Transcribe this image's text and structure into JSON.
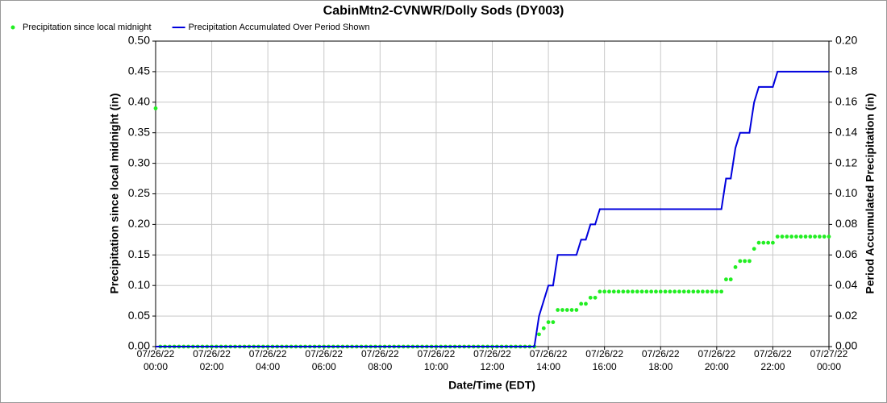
{
  "chart_data": {
    "type": "line",
    "title": "CabinMtn2-CVNWR/Dolly Sods (DY003)",
    "xlabel": "Date/Time (EDT)",
    "ylabel": "Precipitation since local midnight (in)",
    "y2label": "Period Accumulated Precipitation (in)",
    "xlim": [
      "07/26/22 00:00",
      "07/27/22 00:00"
    ],
    "xticks": [
      "07/26/22 00:00",
      "07/26/22 02:00",
      "07/26/22 04:00",
      "07/26/22 06:00",
      "07/26/22 08:00",
      "07/26/22 10:00",
      "07/26/22 12:00",
      "07/26/22 14:00",
      "07/26/22 16:00",
      "07/26/22 18:00",
      "07/26/22 20:00",
      "07/26/22 22:00",
      "07/27/22 00:00"
    ],
    "ylim": [
      0,
      0.5
    ],
    "yticks": [
      {
        "value": 0,
        "label": "0.00"
      },
      {
        "value": 0.05,
        "label": "0.05"
      },
      {
        "value": 0.1,
        "label": "0.10"
      },
      {
        "value": 0.15,
        "label": "0.15"
      },
      {
        "value": 0.2,
        "label": "0.20"
      },
      {
        "value": 0.25,
        "label": "0.25"
      },
      {
        "value": 0.3,
        "label": "0.30"
      },
      {
        "value": 0.35,
        "label": "0.35"
      },
      {
        "value": 0.4,
        "label": "0.40"
      },
      {
        "value": 0.45,
        "label": "0.45"
      },
      {
        "value": 0.5,
        "label": "0.50"
      }
    ],
    "y2lim": [
      0,
      0.2
    ],
    "y2ticks": [
      {
        "value": 0,
        "label": "0.00"
      },
      {
        "value": 0.02,
        "label": "0.02"
      },
      {
        "value": 0.04,
        "label": "0.04"
      },
      {
        "value": 0.06,
        "label": "0.06"
      },
      {
        "value": 0.08,
        "label": "0.08"
      },
      {
        "value": 0.1,
        "label": "0.10"
      },
      {
        "value": 0.12,
        "label": "0.12"
      },
      {
        "value": 0.14,
        "label": "0.14"
      },
      {
        "value": 0.16,
        "label": "0.16"
      },
      {
        "value": 0.18,
        "label": "0.18"
      },
      {
        "value": 0.2,
        "label": "0.20"
      }
    ],
    "grid": true,
    "x": [
      "07/26/22 00:00",
      "07/26/22 00:10",
      "07/26/22 00:20",
      "07/26/22 00:30",
      "07/26/22 00:40",
      "07/26/22 00:50",
      "07/26/22 01:00",
      "07/26/22 01:10",
      "07/26/22 01:20",
      "07/26/22 01:30",
      "07/26/22 01:40",
      "07/26/22 01:50",
      "07/26/22 02:00",
      "07/26/22 02:10",
      "07/26/22 02:20",
      "07/26/22 02:30",
      "07/26/22 02:40",
      "07/26/22 02:50",
      "07/26/22 03:00",
      "07/26/22 03:10",
      "07/26/22 03:20",
      "07/26/22 03:30",
      "07/26/22 03:40",
      "07/26/22 03:50",
      "07/26/22 04:00",
      "07/26/22 04:10",
      "07/26/22 04:20",
      "07/26/22 04:30",
      "07/26/22 04:40",
      "07/26/22 04:50",
      "07/26/22 05:00",
      "07/26/22 05:10",
      "07/26/22 05:20",
      "07/26/22 05:30",
      "07/26/22 05:40",
      "07/26/22 05:50",
      "07/26/22 06:00",
      "07/26/22 06:10",
      "07/26/22 06:20",
      "07/26/22 06:30",
      "07/26/22 06:40",
      "07/26/22 06:50",
      "07/26/22 07:00",
      "07/26/22 07:10",
      "07/26/22 07:20",
      "07/26/22 07:30",
      "07/26/22 07:40",
      "07/26/22 07:50",
      "07/26/22 08:00",
      "07/26/22 08:10",
      "07/26/22 08:20",
      "07/26/22 08:30",
      "07/26/22 08:40",
      "07/26/22 08:50",
      "07/26/22 09:00",
      "07/26/22 09:10",
      "07/26/22 09:20",
      "07/26/22 09:30",
      "07/26/22 09:40",
      "07/26/22 09:50",
      "07/26/22 10:00",
      "07/26/22 10:10",
      "07/26/22 10:20",
      "07/26/22 10:30",
      "07/26/22 10:40",
      "07/26/22 10:50",
      "07/26/22 11:00",
      "07/26/22 11:10",
      "07/26/22 11:20",
      "07/26/22 11:30",
      "07/26/22 11:40",
      "07/26/22 11:50",
      "07/26/22 12:00",
      "07/26/22 12:10",
      "07/26/22 12:20",
      "07/26/22 12:30",
      "07/26/22 12:40",
      "07/26/22 12:50",
      "07/26/22 13:00",
      "07/26/22 13:10",
      "07/26/22 13:20",
      "07/26/22 13:30",
      "07/26/22 13:40",
      "07/26/22 13:50",
      "07/26/22 14:00",
      "07/26/22 14:10",
      "07/26/22 14:20",
      "07/26/22 14:30",
      "07/26/22 14:40",
      "07/26/22 14:50",
      "07/26/22 15:00",
      "07/26/22 15:10",
      "07/26/22 15:20",
      "07/26/22 15:30",
      "07/26/22 15:40",
      "07/26/22 15:50",
      "07/26/22 16:00",
      "07/26/22 16:10",
      "07/26/22 16:20",
      "07/26/22 16:30",
      "07/26/22 16:40",
      "07/26/22 16:50",
      "07/26/22 17:00",
      "07/26/22 17:10",
      "07/26/22 17:20",
      "07/26/22 17:30",
      "07/26/22 17:40",
      "07/26/22 17:50",
      "07/26/22 18:00",
      "07/26/22 18:10",
      "07/26/22 18:20",
      "07/26/22 18:30",
      "07/26/22 18:40",
      "07/26/22 18:50",
      "07/26/22 19:00",
      "07/26/22 19:10",
      "07/26/22 19:20",
      "07/26/22 19:30",
      "07/26/22 19:40",
      "07/26/22 19:50",
      "07/26/22 20:00",
      "07/26/22 20:10",
      "07/26/22 20:20",
      "07/26/22 20:30",
      "07/26/22 20:40",
      "07/26/22 20:50",
      "07/26/22 21:00",
      "07/26/22 21:10",
      "07/26/22 21:20",
      "07/26/22 21:30",
      "07/26/22 21:40",
      "07/26/22 21:50",
      "07/26/22 22:00",
      "07/26/22 22:10",
      "07/26/22 22:20",
      "07/26/22 22:30",
      "07/26/22 22:40",
      "07/26/22 22:50",
      "07/26/22 23:00",
      "07/26/22 23:10",
      "07/26/22 23:20",
      "07/26/22 23:30",
      "07/26/22 23:40",
      "07/26/22 23:50",
      "07/27/22 00:00"
    ],
    "series": [
      {
        "name": "Precipitation since local midnight",
        "type": "scatter",
        "color": "#22ee22",
        "values": [
          0.39,
          0,
          0,
          0,
          0,
          0,
          0,
          0,
          0,
          0,
          0,
          0,
          0,
          0,
          0,
          0,
          0,
          0,
          0,
          0,
          0,
          0,
          0,
          0,
          0,
          0,
          0,
          0,
          0,
          0,
          0,
          0,
          0,
          0,
          0,
          0,
          0,
          0,
          0,
          0,
          0,
          0,
          0,
          0,
          0,
          0,
          0,
          0,
          0,
          0,
          0,
          0,
          0,
          0,
          0,
          0,
          0,
          0,
          0,
          0,
          0,
          0,
          0,
          0,
          0,
          0,
          0,
          0,
          0,
          0,
          0,
          0,
          0,
          0,
          0,
          0,
          0,
          0,
          0,
          0,
          0,
          0,
          0.02,
          0.03,
          0.04,
          0.04,
          0.06,
          0.06,
          0.06,
          0.06,
          0.06,
          0.07,
          0.07,
          0.08,
          0.08,
          0.09,
          0.09,
          0.09,
          0.09,
          0.09,
          0.09,
          0.09,
          0.09,
          0.09,
          0.09,
          0.09,
          0.09,
          0.09,
          0.09,
          0.09,
          0.09,
          0.09,
          0.09,
          0.09,
          0.09,
          0.09,
          0.09,
          0.09,
          0.09,
          0.09,
          0.09,
          0.09,
          0.11,
          0.11,
          0.13,
          0.14,
          0.14,
          0.14,
          0.16,
          0.17,
          0.17,
          0.17,
          0.17,
          0.18,
          0.18,
          0.18,
          0.18,
          0.18,
          0.18,
          0.18,
          0.18,
          0.18,
          0.18,
          0.18,
          0.18
        ]
      },
      {
        "name": "Precipitation Accumulated Over Period Shown",
        "type": "line",
        "axis": "y2",
        "color": "#0000dd",
        "values": [
          0,
          0,
          0,
          0,
          0,
          0,
          0,
          0,
          0,
          0,
          0,
          0,
          0,
          0,
          0,
          0,
          0,
          0,
          0,
          0,
          0,
          0,
          0,
          0,
          0,
          0,
          0,
          0,
          0,
          0,
          0,
          0,
          0,
          0,
          0,
          0,
          0,
          0,
          0,
          0,
          0,
          0,
          0,
          0,
          0,
          0,
          0,
          0,
          0,
          0,
          0,
          0,
          0,
          0,
          0,
          0,
          0,
          0,
          0,
          0,
          0,
          0,
          0,
          0,
          0,
          0,
          0,
          0,
          0,
          0,
          0,
          0,
          0,
          0,
          0,
          0,
          0,
          0,
          0,
          0,
          0,
          0,
          0.02,
          0.03,
          0.04,
          0.04,
          0.06,
          0.06,
          0.06,
          0.06,
          0.06,
          0.07,
          0.07,
          0.08,
          0.08,
          0.09,
          0.09,
          0.09,
          0.09,
          0.09,
          0.09,
          0.09,
          0.09,
          0.09,
          0.09,
          0.09,
          0.09,
          0.09,
          0.09,
          0.09,
          0.09,
          0.09,
          0.09,
          0.09,
          0.09,
          0.09,
          0.09,
          0.09,
          0.09,
          0.09,
          0.09,
          0.09,
          0.11,
          0.11,
          0.13,
          0.14,
          0.14,
          0.14,
          0.16,
          0.17,
          0.17,
          0.17,
          0.17,
          0.18,
          0.18,
          0.18,
          0.18,
          0.18,
          0.18,
          0.18,
          0.18,
          0.18,
          0.18,
          0.18,
          0.18
        ]
      }
    ]
  }
}
